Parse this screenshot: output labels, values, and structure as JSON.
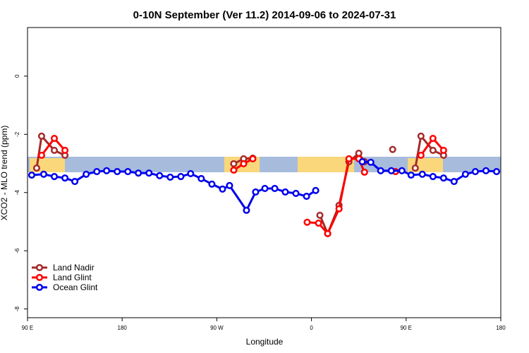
{
  "chart_data": {
    "type": "line",
    "title": "0-10N September (Ver 11.2)   2014-09-06 to 2024-07-31",
    "x_label": "Longitude",
    "y_label": "XCO2 - MLO trend (ppm)",
    "xlim": [
      90,
      540
    ],
    "ylim": [
      -8.3,
      1.67
    ],
    "xticks": [
      {
        "value": 90,
        "label": "90 E"
      },
      {
        "value": 180,
        "label": "180"
      },
      {
        "value": 270,
        "label": "90 W"
      },
      {
        "value": 360,
        "label": "0"
      },
      {
        "value": 450,
        "label": "90 E"
      },
      {
        "value": 540,
        "label": "180"
      }
    ],
    "yticks": [
      0,
      -2,
      -4,
      -6,
      -8
    ],
    "legend": "bottom-left",
    "series": [
      {
        "name": "Land Nadir",
        "color": "#a52a2a",
        "x": [
          98.7,
          103.4,
          115.5,
          125.6,
          200,
          286.1,
          295.5,
          304.2,
          340,
          368,
          375.4,
          386.2,
          395.6,
          405,
          410.4,
          420,
          437.2,
          445,
          458.7,
          464.1,
          475.5,
          485.6
        ],
        "values": [
          -3.16,
          -2.06,
          -2.55,
          -2.72,
          null,
          -3.01,
          -2.84,
          -2.82,
          null,
          -4.78,
          -5.41,
          -4.44,
          -2.94,
          -2.65,
          -2.94,
          null,
          -2.52,
          null,
          -3.16,
          -2.06,
          -2.55,
          -2.72
        ]
      },
      {
        "name": "Land Glint",
        "color": "#ff0000",
        "x": [
          103.4,
          115.5,
          125.6,
          200,
          286.1,
          295.5,
          304.2,
          340,
          355.9,
          366.7,
          375.4,
          386.2,
          395.6,
          405,
          410.4,
          420,
          439.9,
          450,
          464.1,
          475.5,
          485.6
        ],
        "values": [
          -2.72,
          -2.14,
          -2.55,
          null,
          -3.23,
          -3.01,
          -2.84,
          null,
          -5.02,
          -5.05,
          -5.41,
          -4.56,
          -2.84,
          -2.84,
          -3.3,
          null,
          -3.28,
          null,
          -2.72,
          -2.14,
          -2.55
        ]
      },
      {
        "name": "Ocean Glint",
        "color": "#0000ee",
        "x": [
          94,
          105.4,
          115.5,
          125.6,
          135,
          145.8,
          155.9,
          165.2,
          175.3,
          185.4,
          195.4,
          205.5,
          215.6,
          225.7,
          235.8,
          245.1,
          255.2,
          265.3,
          275.4,
          282.1,
          298.2,
          306.9,
          315.7,
          325.1,
          335.1,
          345.2,
          355.3,
          364,
          390,
          408.3,
          416.4,
          425.8,
          435.9,
          446,
          454.7,
          465.4,
          475.5,
          485.6,
          495.6,
          506.4,
          515.8,
          525.9,
          536
        ],
        "values": [
          -3.4,
          -3.37,
          -3.45,
          -3.5,
          -3.62,
          -3.37,
          -3.28,
          -3.25,
          -3.28,
          -3.28,
          -3.33,
          -3.33,
          -3.42,
          -3.47,
          -3.45,
          -3.35,
          -3.52,
          -3.71,
          -3.88,
          -3.76,
          -4.61,
          -3.98,
          -3.86,
          -3.86,
          -3.98,
          -4.03,
          -4.13,
          -3.93,
          null,
          -2.94,
          -2.96,
          -3.25,
          -3.25,
          -3.25,
          -3.4,
          -3.37,
          -3.45,
          -3.5,
          -3.62,
          -3.37,
          -3.28,
          -3.25,
          -3.28
        ]
      }
    ]
  }
}
